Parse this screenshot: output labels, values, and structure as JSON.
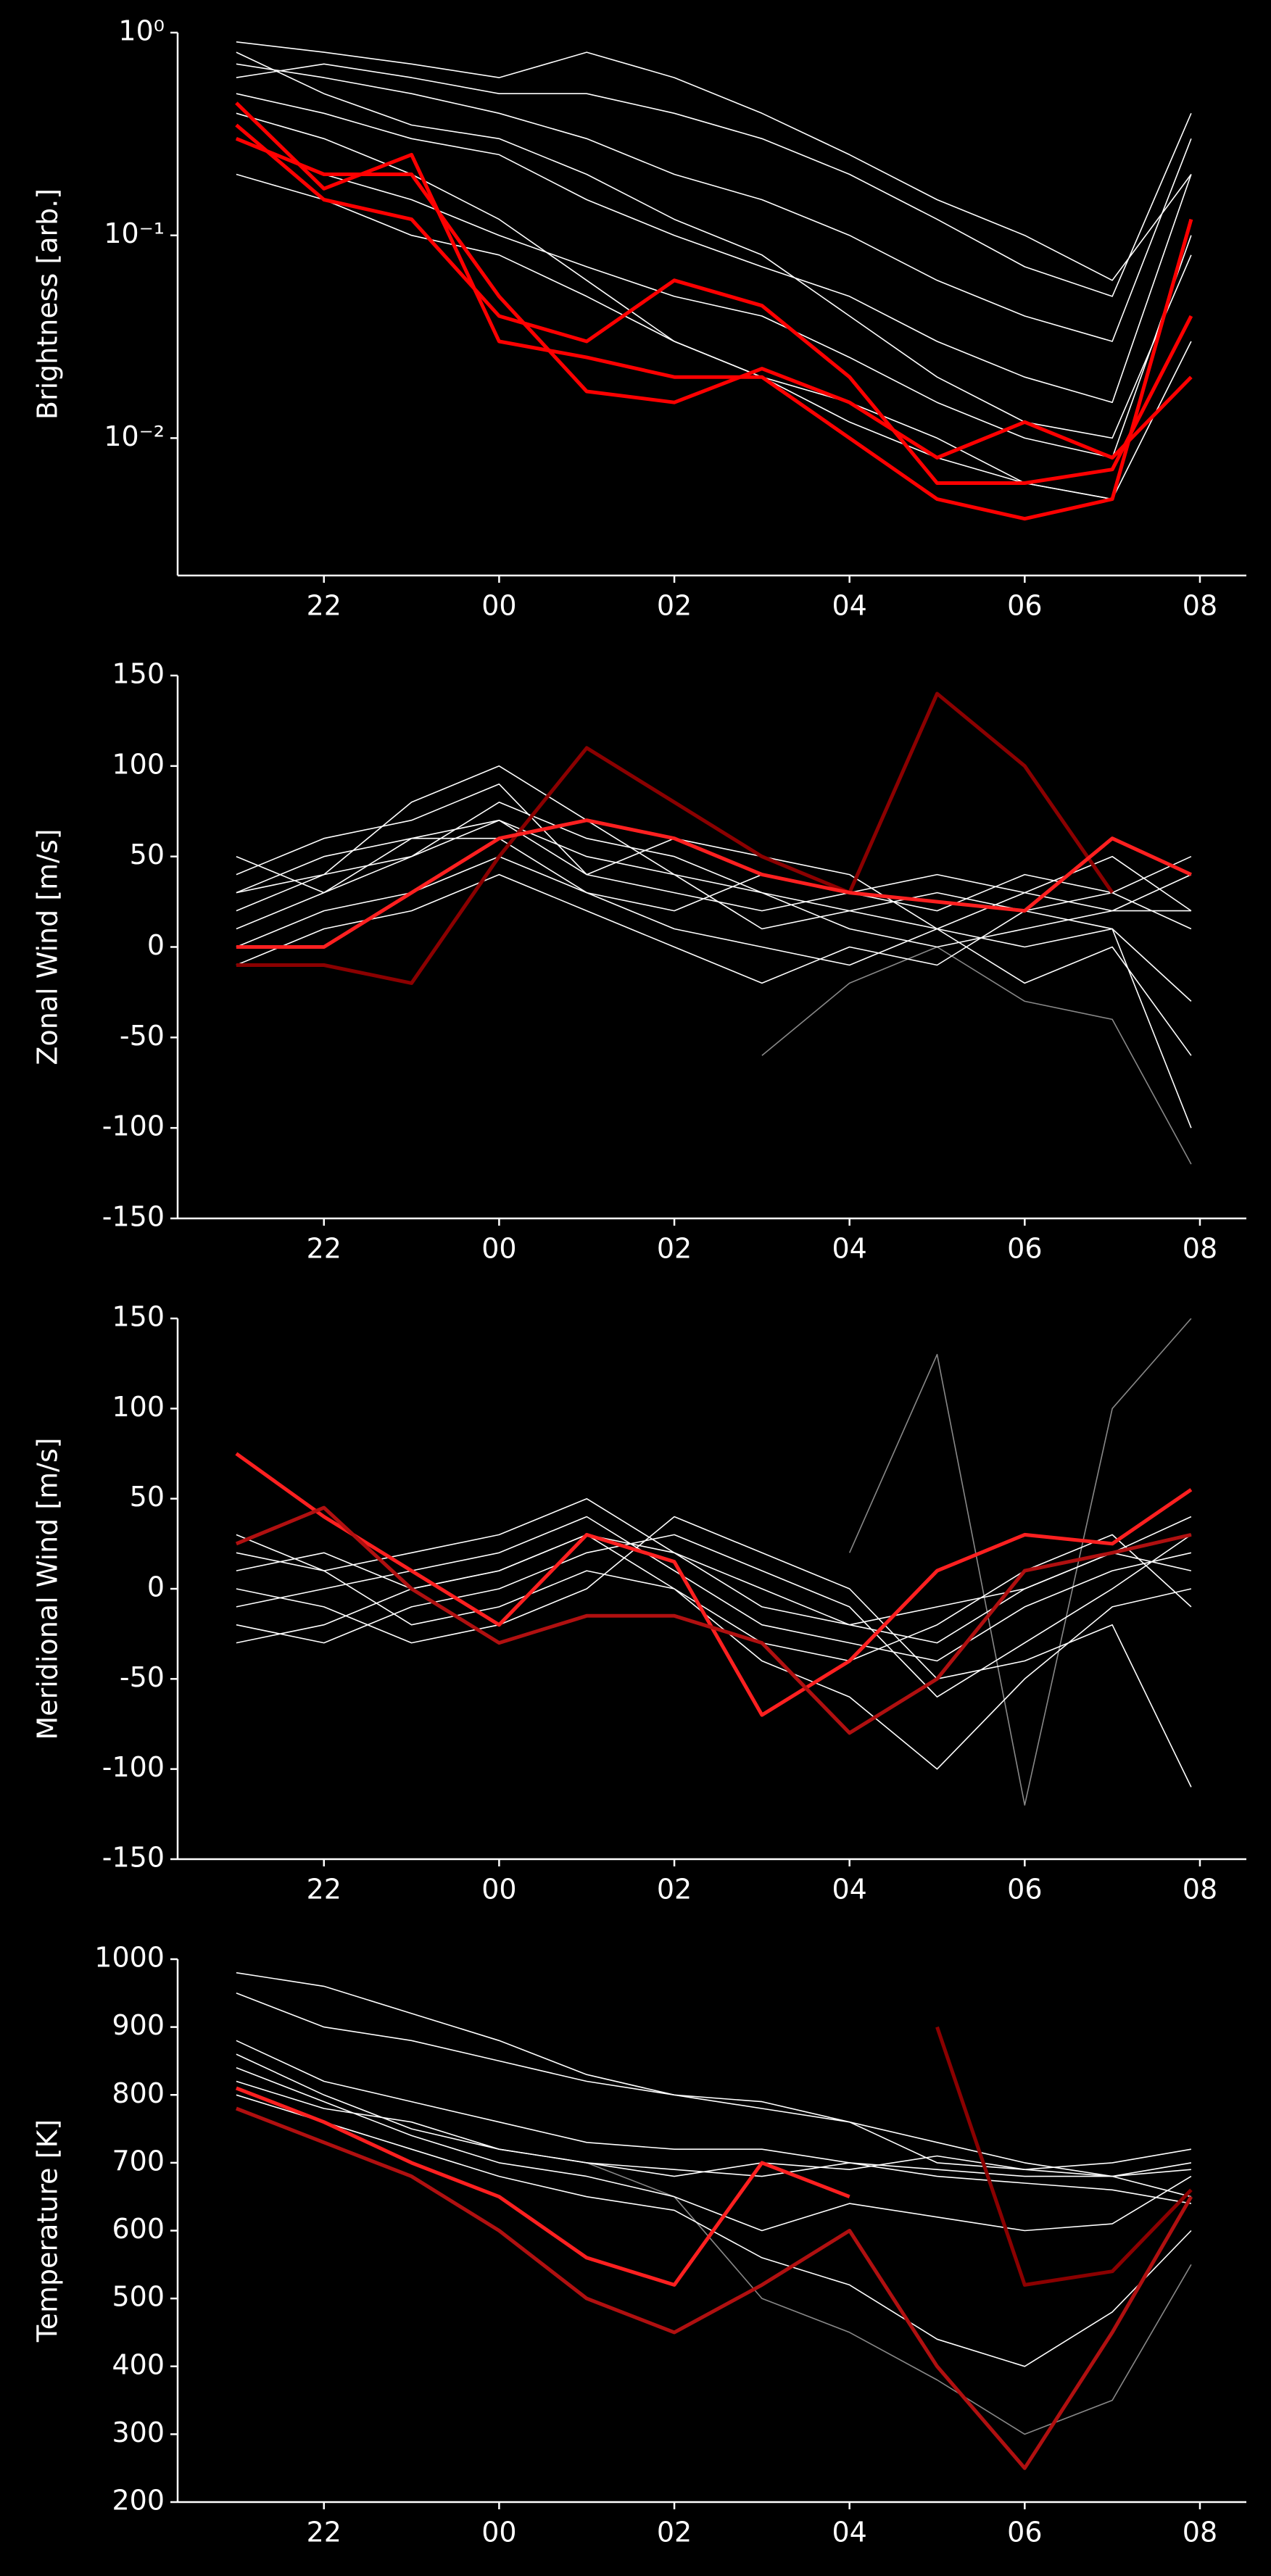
{
  "chart_data": [
    {
      "type": "line",
      "ylabel": "Brightness [arb.]",
      "yscale": "log",
      "xlim": [
        20.33,
        32.53
      ],
      "ylim": [
        0.0021,
        1
      ],
      "xticks": [
        22,
        {
          "value": 24,
          "label": "00"
        },
        {
          "value": 26,
          "label": "02"
        },
        {
          "value": 28,
          "label": "04"
        },
        {
          "value": 30,
          "label": "06"
        },
        {
          "value": 32,
          "label": "08"
        }
      ],
      "yticks": [
        {
          "value": 0.01,
          "label": "10⁻²"
        },
        {
          "value": 0.1,
          "label": "10⁻¹"
        },
        {
          "value": 1,
          "label": "10⁰"
        }
      ],
      "x": [
        21,
        22,
        23,
        24,
        25,
        26,
        27,
        28,
        29,
        30,
        31,
        31.9
      ],
      "series": [
        {
          "color": "#ffffff",
          "values": [
            0.7,
            0.6,
            0.5,
            0.4,
            0.3,
            0.2,
            0.15,
            0.1,
            0.06,
            0.04,
            0.03,
            0.3
          ]
        },
        {
          "color": "#ffffff",
          "values": [
            0.5,
            0.4,
            0.3,
            0.25,
            0.15,
            0.1,
            0.07,
            0.05,
            0.03,
            0.02,
            0.015,
            0.2
          ]
        },
        {
          "color": "#ffffff",
          "values": [
            0.6,
            0.7,
            0.6,
            0.5,
            0.5,
            0.4,
            0.3,
            0.2,
            0.12,
            0.07,
            0.05,
            0.4
          ]
        },
        {
          "color": "#ffffff",
          "values": [
            0.3,
            0.2,
            0.15,
            0.1,
            0.07,
            0.05,
            0.04,
            0.025,
            0.015,
            0.01,
            0.008,
            0.1
          ]
        },
        {
          "color": "#ffffff",
          "values": [
            0.8,
            0.5,
            0.35,
            0.3,
            0.2,
            0.12,
            0.08,
            0.04,
            0.02,
            0.012,
            0.01,
            0.08
          ]
        },
        {
          "color": "#ffffff",
          "values": [
            0.4,
            0.3,
            0.2,
            0.12,
            0.06,
            0.03,
            0.02,
            0.012,
            0.008,
            0.006,
            0.005,
            0.03
          ]
        },
        {
          "color": "#ffffff",
          "values": [
            0.9,
            0.8,
            0.7,
            0.6,
            0.8,
            0.6,
            0.4,
            0.25,
            0.15,
            0.1,
            0.06,
            0.2
          ]
        },
        {
          "color": "#ffffff",
          "values": [
            0.2,
            0.15,
            0.1,
            0.08,
            0.05,
            0.03,
            0.02,
            0.015,
            0.01,
            0.006,
            0.005,
            null
          ]
        },
        {
          "color": "#ff0000",
          "values": [
            0.45,
            0.17,
            0.25,
            0.03,
            0.025,
            0.02,
            0.02,
            0.01,
            0.005,
            0.004,
            0.005,
            0.12
          ]
        },
        {
          "color": "#ff0000",
          "values": [
            0.35,
            0.15,
            0.12,
            0.04,
            0.03,
            0.06,
            0.045,
            0.02,
            0.006,
            0.006,
            0.007,
            0.04
          ]
        },
        {
          "color": "#ff0000",
          "values": [
            0.3,
            0.2,
            0.2,
            0.05,
            0.017,
            0.015,
            0.022,
            0.015,
            0.008,
            0.012,
            0.008,
            0.02
          ]
        }
      ]
    },
    {
      "type": "line",
      "ylabel": "Zonal Wind [m/s]",
      "xlim": [
        20.33,
        32.53
      ],
      "ylim": [
        -150,
        150
      ],
      "xticks": [
        22,
        {
          "value": 24,
          "label": "00"
        },
        {
          "value": 26,
          "label": "02"
        },
        {
          "value": 28,
          "label": "04"
        },
        {
          "value": 30,
          "label": "06"
        },
        {
          "value": 32,
          "label": "08"
        }
      ],
      "yticks": [
        -150,
        -100,
        -50,
        0,
        50,
        100,
        150
      ],
      "x": [
        21,
        22,
        23,
        24,
        25,
        26,
        27,
        28,
        29,
        30,
        31,
        31.9
      ],
      "series": [
        {
          "color": "#888888",
          "values": [
            null,
            null,
            null,
            null,
            null,
            null,
            -60,
            -20,
            0,
            -30,
            -40,
            -120
          ]
        },
        {
          "color": "#ffffff",
          "values": [
            30,
            50,
            60,
            70,
            50,
            40,
            30,
            20,
            30,
            20,
            30,
            10
          ]
        },
        {
          "color": "#ffffff",
          "values": [
            10,
            30,
            50,
            80,
            60,
            50,
            30,
            10,
            0,
            10,
            20,
            20
          ]
        },
        {
          "color": "#ffffff",
          "values": [
            40,
            60,
            70,
            90,
            40,
            30,
            20,
            30,
            40,
            30,
            20,
            40
          ]
        },
        {
          "color": "#ffffff",
          "values": [
            0,
            20,
            30,
            50,
            30,
            10,
            0,
            -10,
            10,
            0,
            10,
            -30
          ]
        },
        {
          "color": "#ffffff",
          "values": [
            20,
            40,
            80,
            100,
            70,
            40,
            10,
            20,
            10,
            -20,
            0,
            -60
          ]
        },
        {
          "color": "#ffffff",
          "values": [
            50,
            30,
            60,
            60,
            30,
            20,
            40,
            30,
            20,
            40,
            30,
            50
          ]
        },
        {
          "color": "#ffffff",
          "values": [
            -10,
            10,
            20,
            40,
            20,
            0,
            -20,
            0,
            -10,
            20,
            10,
            -100
          ]
        },
        {
          "color": "#ffffff",
          "values": [
            30,
            40,
            50,
            70,
            40,
            60,
            50,
            40,
            10,
            30,
            50,
            20
          ]
        },
        {
          "color": "#8b0000",
          "values": [
            -10,
            -10,
            -20,
            50,
            110,
            80,
            50,
            30,
            140,
            100,
            30,
            null
          ]
        },
        {
          "color": "#ff2020",
          "values": [
            0,
            0,
            30,
            60,
            70,
            60,
            40,
            30,
            25,
            20,
            60,
            40
          ]
        }
      ]
    },
    {
      "type": "line",
      "ylabel": "Meridional Wind [m/s]",
      "xlim": [
        20.33,
        32.53
      ],
      "ylim": [
        -150,
        150
      ],
      "xticks": [
        22,
        {
          "value": 24,
          "label": "00"
        },
        {
          "value": 26,
          "label": "02"
        },
        {
          "value": 28,
          "label": "04"
        },
        {
          "value": 30,
          "label": "06"
        },
        {
          "value": 32,
          "label": "08"
        }
      ],
      "yticks": [
        -150,
        -100,
        -50,
        0,
        50,
        100,
        150
      ],
      "x": [
        21,
        22,
        23,
        24,
        25,
        26,
        27,
        28,
        29,
        30,
        31,
        31.9
      ],
      "series": [
        {
          "color": "#888888",
          "values": [
            null,
            null,
            null,
            null,
            null,
            null,
            null,
            20,
            130,
            -120,
            100,
            150
          ]
        },
        {
          "color": "#ffffff",
          "values": [
            -10,
            0,
            10,
            20,
            40,
            10,
            -20,
            -30,
            -40,
            -10,
            10,
            20
          ]
        },
        {
          "color": "#ffffff",
          "values": [
            10,
            20,
            0,
            10,
            30,
            20,
            0,
            -20,
            -30,
            0,
            20,
            10
          ]
        },
        {
          "color": "#ffffff",
          "values": [
            -20,
            -30,
            -10,
            0,
            20,
            30,
            10,
            -10,
            -60,
            -30,
            0,
            30
          ]
        },
        {
          "color": "#ffffff",
          "values": [
            20,
            10,
            -20,
            -10,
            10,
            0,
            -30,
            -40,
            -20,
            10,
            30,
            -10
          ]
        },
        {
          "color": "#ffffff",
          "values": [
            0,
            -10,
            -30,
            -20,
            0,
            40,
            20,
            0,
            -50,
            -40,
            -20,
            -110
          ]
        },
        {
          "color": "#ffffff",
          "values": [
            30,
            10,
            20,
            30,
            50,
            20,
            -10,
            -20,
            -10,
            0,
            20,
            40
          ]
        },
        {
          "color": "#ffffff",
          "values": [
            -30,
            -20,
            0,
            10,
            30,
            0,
            -40,
            -60,
            -100,
            -50,
            -10,
            0
          ]
        },
        {
          "color": "#ff2020",
          "values": [
            75,
            40,
            10,
            -20,
            30,
            15,
            -70,
            -40,
            10,
            30,
            25,
            55
          ]
        },
        {
          "color": "#b01010",
          "values": [
            25,
            45,
            0,
            -30,
            -15,
            -15,
            -30,
            -80,
            -50,
            10,
            20,
            30
          ]
        }
      ]
    },
    {
      "type": "line",
      "ylabel": "Temperature [K]",
      "xlim": [
        20.33,
        32.53
      ],
      "ylim": [
        200,
        1000
      ],
      "xticks": [
        22,
        {
          "value": 24,
          "label": "00"
        },
        {
          "value": 26,
          "label": "02"
        },
        {
          "value": 28,
          "label": "04"
        },
        {
          "value": 30,
          "label": "06"
        },
        {
          "value": 32,
          "label": "08"
        }
      ],
      "yticks": [
        200,
        300,
        400,
        500,
        600,
        700,
        800,
        900,
        1000
      ],
      "x": [
        21,
        22,
        23,
        24,
        25,
        26,
        27,
        28,
        29,
        30,
        31,
        31.9
      ],
      "series": [
        {
          "color": "#888888",
          "values": [
            null,
            null,
            null,
            null,
            700,
            650,
            500,
            450,
            380,
            300,
            350,
            550
          ]
        },
        {
          "color": "#ffffff",
          "values": [
            880,
            820,
            790,
            760,
            730,
            720,
            720,
            700,
            690,
            680,
            680,
            700
          ]
        },
        {
          "color": "#ffffff",
          "values": [
            950,
            900,
            880,
            850,
            820,
            800,
            780,
            760,
            700,
            690,
            680,
            650
          ]
        },
        {
          "color": "#ffffff",
          "values": [
            820,
            780,
            760,
            720,
            700,
            690,
            680,
            700,
            680,
            670,
            660,
            640
          ]
        },
        {
          "color": "#ffffff",
          "values": [
            860,
            800,
            750,
            720,
            700,
            680,
            700,
            690,
            710,
            690,
            700,
            720
          ]
        },
        {
          "color": "#ffffff",
          "values": [
            980,
            960,
            920,
            880,
            830,
            800,
            790,
            760,
            730,
            700,
            680,
            690
          ]
        },
        {
          "color": "#ffffff",
          "values": [
            840,
            790,
            740,
            700,
            680,
            650,
            600,
            640,
            620,
            600,
            610,
            680
          ]
        },
        {
          "color": "#ffffff",
          "values": [
            800,
            760,
            720,
            680,
            650,
            630,
            560,
            520,
            440,
            400,
            480,
            600
          ]
        },
        {
          "color": "#8b0000",
          "values": [
            null,
            null,
            null,
            null,
            null,
            null,
            null,
            null,
            900,
            520,
            540,
            660
          ]
        },
        {
          "color": "#b01010",
          "values": [
            780,
            730,
            680,
            600,
            500,
            450,
            520,
            600,
            400,
            250,
            450,
            650
          ]
        },
        {
          "color": "#ff2020",
          "values": [
            810,
            760,
            700,
            650,
            560,
            520,
            700,
            650,
            null,
            null,
            null,
            null
          ]
        }
      ]
    }
  ]
}
